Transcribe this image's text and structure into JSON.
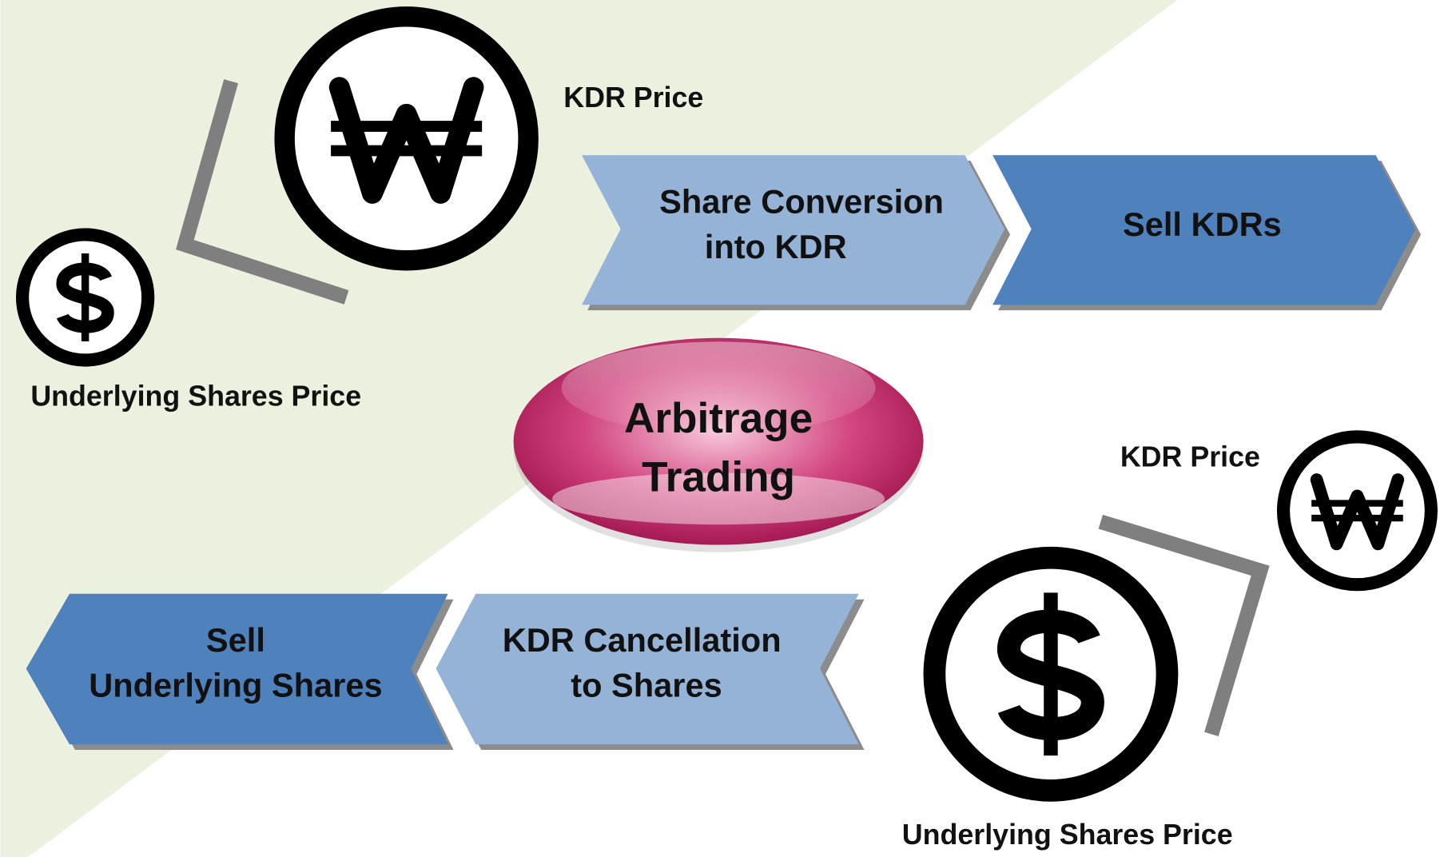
{
  "top": {
    "won_label": "KDR Price",
    "dollar_label": "Underlying Shares Price",
    "steps": [
      {
        "lines": [
          "Share Conversion",
          "into KDR"
        ]
      },
      {
        "lines": [
          "Sell KDRs"
        ]
      }
    ]
  },
  "center": {
    "lines": [
      "Arbitrage",
      "Trading"
    ]
  },
  "bottom": {
    "won_label": "KDR Price",
    "dollar_label": "Underlying Shares Price",
    "steps": [
      {
        "lines": [
          "Sell",
          "Underlying Shares"
        ]
      },
      {
        "lines": [
          "KDR Cancellation",
          "to Shares"
        ]
      }
    ]
  }
}
